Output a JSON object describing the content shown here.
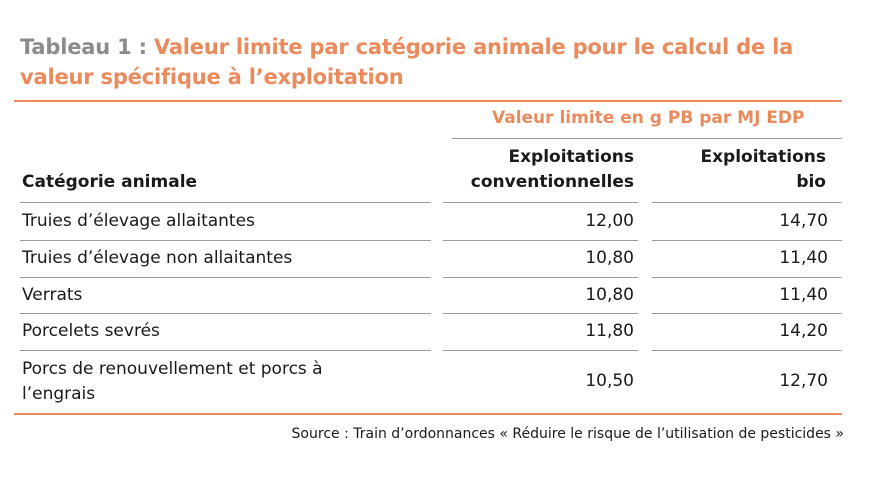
{
  "title": {
    "prefix": "Tableau 1 : ",
    "main": "Valeur limite par catégorie animale pour le calcul de la valeur spécifique à l’exploitation"
  },
  "table": {
    "unit_header": "Valeur limite en g PB par MJ EDP",
    "columns": {
      "category": "Catégorie animale",
      "conventional": [
        "Exploitations",
        "conventionnelles"
      ],
      "organic": [
        "Exploitations",
        "bio"
      ]
    },
    "rows": [
      {
        "category": [
          "Truies d’élevage allaitantes"
        ],
        "conventional": "12,00",
        "organic": "14,70"
      },
      {
        "category": [
          "Truies d’élevage non allaitantes"
        ],
        "conventional": "10,80",
        "organic": "11,40"
      },
      {
        "category": [
          "Verrats"
        ],
        "conventional": "10,80",
        "organic": "11,40"
      },
      {
        "category": [
          "Porcelets sevrés"
        ],
        "conventional": "11,80",
        "organic": "14,20"
      },
      {
        "category": [
          "Porcs de renouvellement et porcs à",
          "l’engrais"
        ],
        "conventional": "10,50",
        "organic": "12,70"
      }
    ]
  },
  "source": "Source : Train d’ordonnances « Réduire le risque de l’utilisation de pesticides »",
  "colors": {
    "accent": "#ec8a5c",
    "title_prefix": "#8c8c8c",
    "text": "#1a1a1a",
    "rule": "#9a9a9a"
  }
}
